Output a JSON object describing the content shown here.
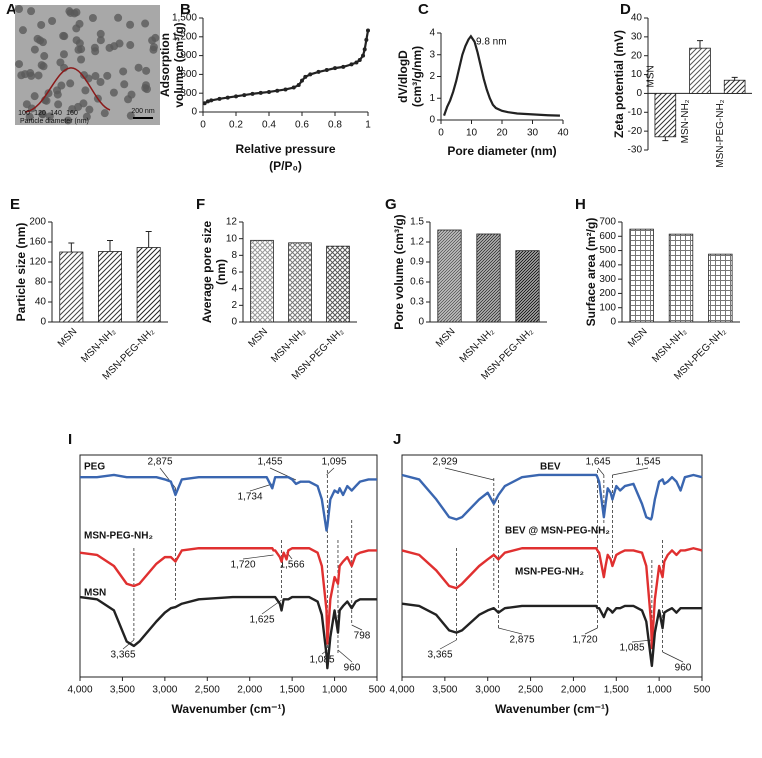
{
  "chart_data": [
    {
      "panel_label": "A",
      "type": "image",
      "inset_xticks": [
        100,
        120,
        140,
        160
      ],
      "inset_xlabel": "Particle diameter (nm)",
      "scale_bar": "200 nm"
    },
    {
      "panel_label": "B",
      "type": "line",
      "markers": true,
      "color": "#222222",
      "x": [
        0.01,
        0.03,
        0.05,
        0.1,
        0.15,
        0.2,
        0.25,
        0.3,
        0.35,
        0.4,
        0.45,
        0.5,
        0.55,
        0.58,
        0.6,
        0.62,
        0.65,
        0.7,
        0.75,
        0.8,
        0.85,
        0.9,
        0.93,
        0.95,
        0.97,
        0.98,
        0.99,
        1.0
      ],
      "values": [
        140,
        170,
        185,
        210,
        230,
        250,
        270,
        290,
        305,
        320,
        340,
        360,
        390,
        430,
        500,
        560,
        600,
        640,
        670,
        700,
        720,
        760,
        790,
        830,
        900,
        1000,
        1150,
        1300
      ],
      "xlim": [
        0,
        1
      ],
      "xticks": [
        0,
        0.2,
        0.4,
        0.6,
        0.8,
        1
      ],
      "ylim": [
        0,
        1500
      ],
      "yticks": [
        0,
        300,
        600,
        900,
        {
          "value": 1200,
          "label": "1,200"
        },
        {
          "value": 1500,
          "label": "1,500"
        }
      ],
      "x_label": [
        "Relative pressure",
        "(P/P₀)"
      ],
      "y_label": [
        "Adsorption",
        "volume (cm³/g)"
      ]
    },
    {
      "panel_label": "C",
      "type": "line",
      "markers": false,
      "color": "#222222",
      "x": [
        1,
        2,
        3,
        4,
        5,
        6,
        7,
        8,
        9,
        9.8,
        11,
        12,
        13,
        14,
        15,
        16,
        17,
        18,
        20,
        22,
        25,
        30,
        35,
        39
      ],
      "values": [
        0.2,
        0.6,
        0.9,
        1.3,
        1.8,
        2.4,
        3.0,
        3.4,
        3.7,
        3.85,
        3.6,
        3.1,
        2.5,
        1.9,
        1.4,
        1.0,
        0.7,
        0.55,
        0.42,
        0.36,
        0.3,
        0.26,
        0.22,
        0.2
      ],
      "annotation": "9.8 nm",
      "xlim": [
        0,
        40
      ],
      "xticks": [
        0,
        10,
        20,
        30,
        40
      ],
      "ylim": [
        0,
        4
      ],
      "yticks": [
        0,
        1,
        2,
        3,
        4
      ],
      "x_label": [
        "Pore diameter (nm)"
      ],
      "y_label": [
        "dV/dlogD",
        "(cm³/g/nm)"
      ]
    },
    {
      "panel_label": "D",
      "type": "bar",
      "categories": [
        "MSN",
        "MSN-NH₂",
        "MSN-PEG-NH₂"
      ],
      "values": [
        -23,
        24,
        7
      ],
      "errors": [
        2,
        4,
        1.5
      ],
      "colors": [
        "#333333",
        "#555555",
        "#333333"
      ],
      "pattern": "diagonal",
      "category_label_style": "inside",
      "ylim": [
        -30,
        40
      ],
      "yticks": [
        -30,
        -20,
        -10,
        0,
        10,
        20,
        30,
        40
      ],
      "y_label": [
        "Zeta potential (mV)"
      ]
    },
    {
      "panel_label": "E",
      "type": "bar",
      "categories": [
        "MSN",
        "MSN-NH₂",
        "MSN-PEG-NH₂"
      ],
      "values": [
        140,
        141,
        149
      ],
      "errors": [
        18,
        22,
        32
      ],
      "colors": [
        "#444444",
        "#333333",
        "#222222"
      ],
      "pattern": "diagonal",
      "category_label_style": "rotated",
      "ylim": [
        0,
        200
      ],
      "yticks": [
        0,
        40,
        80,
        120,
        160,
        200
      ],
      "y_label": [
        "Particle size (nm)"
      ]
    },
    {
      "panel_label": "F",
      "type": "bar",
      "categories": [
        "MSN",
        "MSN-NH₂",
        "MSN-PEG-NH₂"
      ],
      "values": [
        9.8,
        9.5,
        9.1
      ],
      "colors": [
        "#999999",
        "#777777",
        "#555555"
      ],
      "pattern": "cross",
      "category_label_style": "rotated",
      "ylim": [
        0,
        12
      ],
      "yticks": [
        0,
        2,
        4,
        6,
        8,
        10,
        12
      ],
      "y_label": [
        "Average pore size",
        "(nm)"
      ]
    },
    {
      "panel_label": "G",
      "type": "bar",
      "categories": [
        "MSN",
        "MSN-NH₂",
        "MSN-PEG-NH₂"
      ],
      "values": [
        1.38,
        1.32,
        1.07
      ],
      "colors": [
        "#666666",
        "#444444",
        "#222222"
      ],
      "pattern": "dense",
      "category_label_style": "rotated",
      "ylim": [
        0,
        1.5
      ],
      "yticks": [
        0,
        0.3,
        0.6,
        0.9,
        1.2,
        1.5
      ],
      "y_label": [
        "Pore volume (cm³/g)"
      ]
    },
    {
      "panel_label": "H",
      "type": "bar",
      "categories": [
        "MSN",
        "MSN-NH₂",
        "MSN-PEG-NH₂"
      ],
      "values": [
        650,
        615,
        475
      ],
      "colors": [
        "#777777",
        "#777777",
        "#777777"
      ],
      "pattern": "grid",
      "category_label_style": "rotated",
      "ylim": [
        0,
        700
      ],
      "yticks": [
        0,
        100,
        200,
        300,
        400,
        500,
        600,
        700
      ],
      "y_label": [
        "Surface area (m²/g)"
      ]
    },
    {
      "panel_label": "I",
      "type": "spectrum",
      "x": [
        4000,
        3800,
        3600,
        3450,
        3365,
        3300,
        3100,
        3000,
        2929,
        2875,
        2800,
        2600,
        2400,
        2200,
        2000,
        1800,
        1734,
        1720,
        1700,
        1645,
        1625,
        1600,
        1566,
        1545,
        1500,
        1455,
        1400,
        1300,
        1200,
        1150,
        1095,
        1085,
        1050,
        1000,
        960,
        940,
        900,
        850,
        798,
        750,
        700,
        600,
        500
      ],
      "series": [
        {
          "name": "PEG",
          "color": "#3a66b0",
          "values": [
            90,
            90,
            91,
            90,
            90,
            90,
            90,
            89,
            88,
            82,
            89,
            90,
            90,
            90,
            90,
            90,
            85,
            87,
            90,
            90,
            90,
            90,
            90,
            90,
            89,
            87,
            88,
            88,
            86,
            80,
            66,
            68,
            80,
            84,
            83,
            85,
            82,
            86,
            84,
            86,
            88,
            89,
            89
          ]
        },
        {
          "name": "MSN-PEG-NH₂",
          "color": "#e03030",
          "values": [
            56,
            55,
            50,
            42,
            41,
            42,
            51,
            54,
            54,
            52,
            57,
            58,
            58,
            58,
            58,
            58,
            58,
            57,
            57,
            54,
            52,
            56,
            53,
            57,
            58,
            58,
            58,
            58,
            56,
            50,
            30,
            15,
            35,
            45,
            42,
            50,
            52,
            54,
            50,
            55,
            56,
            57,
            57
          ]
        },
        {
          "name": "MSN",
          "color": "#222222",
          "values": [
            36,
            35,
            30,
            16,
            14,
            16,
            25,
            29,
            31,
            31.5,
            33,
            35,
            35.5,
            36,
            36,
            36,
            36,
            36,
            36,
            33,
            30,
            35,
            35,
            35,
            36,
            36,
            36,
            36,
            34,
            28,
            10,
            4,
            18,
            30,
            20,
            30,
            32,
            34,
            31,
            34,
            35,
            35,
            35
          ]
        }
      ],
      "annotations": [
        {
          "value": 2875,
          "label": "2,875"
        },
        {
          "value": 1455,
          "label": "1,455"
        },
        {
          "value": 1095,
          "label": "1,095"
        },
        {
          "value": 1734,
          "label": "1,734"
        },
        {
          "value": 1720,
          "label": "1,720"
        },
        {
          "value": 1566,
          "label": "1,566"
        },
        {
          "value": 1625,
          "label": "1,625"
        },
        {
          "value": 3365,
          "label": "3,365"
        },
        {
          "value": 1085,
          "label": "1,085"
        },
        960,
        798
      ],
      "xlim": [
        4000,
        500
      ],
      "xticks": [
        {
          "value": 4000,
          "label": "4,000"
        },
        {
          "value": 3500,
          "label": "3,500"
        },
        {
          "value": 3000,
          "label": "3,000"
        },
        {
          "value": 2500,
          "label": "2,500"
        },
        {
          "value": 2000,
          "label": "2,000"
        },
        {
          "value": 1500,
          "label": "1,500"
        },
        {
          "value": 1000,
          "label": "1,000"
        },
        500
      ],
      "ylim": [
        0,
        100
      ],
      "x_label": [
        "Wavenumber (cm⁻¹)"
      ]
    },
    {
      "panel_label": "J",
      "type": "spectrum",
      "x": [
        4000,
        3800,
        3600,
        3450,
        3365,
        3300,
        3100,
        3000,
        2929,
        2875,
        2800,
        2600,
        2400,
        2200,
        2000,
        1800,
        1734,
        1720,
        1700,
        1645,
        1625,
        1600,
        1566,
        1545,
        1500,
        1455,
        1400,
        1300,
        1200,
        1150,
        1095,
        1085,
        1050,
        1000,
        960,
        940,
        900,
        850,
        798,
        750,
        700,
        600,
        500
      ],
      "series": [
        {
          "name": "BEV",
          "color": "#3a66b0",
          "values": [
            91,
            89,
            80,
            72,
            71,
            72,
            80,
            83,
            78,
            82,
            86,
            90,
            91,
            91,
            91,
            91,
            91,
            90,
            88,
            72,
            78,
            85,
            83,
            80,
            86,
            84,
            86,
            87,
            78,
            72,
            71,
            72,
            80,
            88,
            89,
            87,
            88,
            90,
            88,
            84,
            90,
            91,
            90
          ]
        },
        {
          "name": "BEV @ MSN-PEG-NH₂",
          "color": "#e03030",
          "values": [
            57,
            55,
            48,
            41,
            40,
            42,
            50,
            53,
            55,
            53,
            56,
            58,
            58,
            58,
            58,
            58,
            58,
            57,
            56,
            45,
            50,
            55,
            53,
            50,
            55,
            56,
            57,
            57,
            56,
            50,
            25,
            13,
            35,
            50,
            45,
            52,
            55,
            57,
            55,
            57,
            57,
            58,
            57
          ]
        },
        {
          "name": "MSN-PEG-NH₂",
          "color": "#222222",
          "values": [
            33,
            32,
            28,
            21,
            20,
            21,
            28,
            30,
            31,
            29,
            31,
            32,
            32,
            32,
            32,
            32,
            32,
            31,
            31,
            27,
            29,
            31,
            30,
            29,
            31,
            31,
            32,
            32,
            30,
            25,
            8,
            5,
            20,
            30,
            22,
            29,
            30,
            31,
            29,
            31,
            31,
            31,
            31
          ]
        }
      ],
      "annotations": [
        {
          "value": 2929,
          "label": "2,929"
        },
        {
          "value": 1645,
          "label": "1,645"
        },
        {
          "value": 1545,
          "label": "1,545"
        },
        {
          "value": 3365,
          "label": "3,365"
        },
        {
          "value": 2875,
          "label": "2,875"
        },
        {
          "value": 1720,
          "label": "1,720"
        },
        {
          "value": 1085,
          "label": "1,085"
        },
        960
      ],
      "xlim": [
        4000,
        500
      ],
      "xticks": [
        {
          "value": 4000,
          "label": "4,000"
        },
        {
          "value": 3500,
          "label": "3,500"
        },
        {
          "value": 3000,
          "label": "3,000"
        },
        {
          "value": 2500,
          "label": "2,500"
        },
        {
          "value": 2000,
          "label": "2,000"
        },
        {
          "value": 1500,
          "label": "1,500"
        },
        {
          "value": 1000,
          "label": "1,000"
        },
        500
      ],
      "ylim": [
        0,
        100
      ],
      "x_label": [
        "Wavenumber (cm⁻¹)"
      ]
    }
  ]
}
